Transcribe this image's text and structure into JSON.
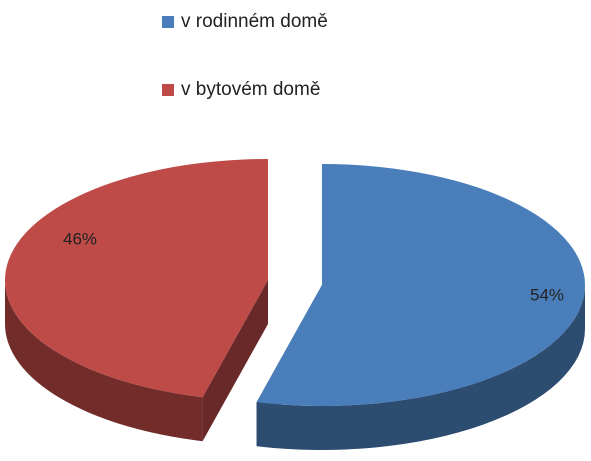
{
  "chart_data": {
    "type": "pie",
    "categories": [
      "v rodinném domě",
      "v bytovém domě"
    ],
    "values": [
      54,
      46
    ],
    "value_labels": [
      "54%",
      "46%"
    ],
    "colors": [
      "#4a7ebb",
      "#be4b48"
    ],
    "legend": "top"
  }
}
